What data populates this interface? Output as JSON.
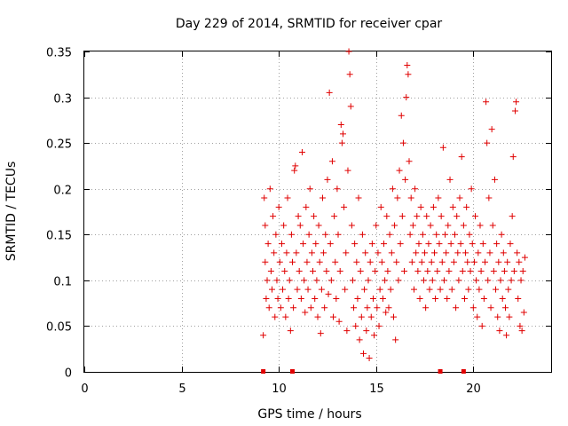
{
  "chart_data": {
    "type": "scatter",
    "title": "Day 229 of 2014, SRMTID for receiver cpar",
    "xlabel": "GPS time / hours",
    "ylabel": "SRMTID / TECUs",
    "xlim": [
      0,
      24
    ],
    "ylim": [
      0,
      0.35
    ],
    "x_ticks": [
      0,
      5,
      10,
      15,
      20
    ],
    "x_tick_labels": [
      "0",
      "5",
      "10",
      "15",
      "20"
    ],
    "y_ticks": [
      0,
      0.05,
      0.1,
      0.15,
      0.2,
      0.25,
      0.3,
      0.35
    ],
    "y_tick_labels": [
      "0",
      "0.05",
      "0.1",
      "0.15",
      "0.2",
      "0.25",
      "0.3",
      "0.35"
    ],
    "grid": true,
    "marker": "+",
    "color": "#e00000",
    "zero_markers_x": [
      9.2,
      10.7,
      18.3,
      19.5
    ],
    "points": [
      [
        9.2,
        0.04
      ],
      [
        9.25,
        0.19
      ],
      [
        9.3,
        0.12
      ],
      [
        9.3,
        0.16
      ],
      [
        9.35,
        0.08
      ],
      [
        9.4,
        0.1
      ],
      [
        9.45,
        0.14
      ],
      [
        9.5,
        0.07
      ],
      [
        9.55,
        0.2
      ],
      [
        9.6,
        0.11
      ],
      [
        9.65,
        0.09
      ],
      [
        9.7,
        0.17
      ],
      [
        9.75,
        0.13
      ],
      [
        9.8,
        0.06
      ],
      [
        9.85,
        0.15
      ],
      [
        9.9,
        0.1
      ],
      [
        9.95,
        0.08
      ],
      [
        10.0,
        0.18
      ],
      [
        10.05,
        0.12
      ],
      [
        10.1,
        0.07
      ],
      [
        10.15,
        0.14
      ],
      [
        10.2,
        0.09
      ],
      [
        10.25,
        0.16
      ],
      [
        10.3,
        0.11
      ],
      [
        10.35,
        0.06
      ],
      [
        10.4,
        0.13
      ],
      [
        10.45,
        0.19
      ],
      [
        10.5,
        0.08
      ],
      [
        10.55,
        0.1
      ],
      [
        10.6,
        0.045
      ],
      [
        10.65,
        0.15
      ],
      [
        10.7,
        0.12
      ],
      [
        10.75,
        0.07
      ],
      [
        10.8,
        0.22
      ],
      [
        10.85,
        0.225
      ],
      [
        10.9,
        0.13
      ],
      [
        10.95,
        0.09
      ],
      [
        11.0,
        0.17
      ],
      [
        11.05,
        0.11
      ],
      [
        11.1,
        0.16
      ],
      [
        11.15,
        0.08
      ],
      [
        11.2,
        0.24
      ],
      [
        11.25,
        0.14
      ],
      [
        11.3,
        0.1
      ],
      [
        11.35,
        0.065
      ],
      [
        11.4,
        0.18
      ],
      [
        11.45,
        0.12
      ],
      [
        11.5,
        0.09
      ],
      [
        11.55,
        0.15
      ],
      [
        11.6,
        0.2
      ],
      [
        11.65,
        0.07
      ],
      [
        11.7,
        0.13
      ],
      [
        11.75,
        0.11
      ],
      [
        11.8,
        0.17
      ],
      [
        11.85,
        0.08
      ],
      [
        11.9,
        0.14
      ],
      [
        11.95,
        0.1
      ],
      [
        12.0,
        0.06
      ],
      [
        12.05,
        0.16
      ],
      [
        12.1,
        0.12
      ],
      [
        12.15,
        0.042
      ],
      [
        12.2,
        0.09
      ],
      [
        12.25,
        0.19
      ],
      [
        12.3,
        0.13
      ],
      [
        12.35,
        0.07
      ],
      [
        12.4,
        0.15
      ],
      [
        12.45,
        0.11
      ],
      [
        12.5,
        0.21
      ],
      [
        12.55,
        0.085
      ],
      [
        12.6,
        0.305
      ],
      [
        12.65,
        0.14
      ],
      [
        12.7,
        0.1
      ],
      [
        12.75,
        0.23
      ],
      [
        12.8,
        0.06
      ],
      [
        12.85,
        0.17
      ],
      [
        12.9,
        0.12
      ],
      [
        12.95,
        0.08
      ],
      [
        13.0,
        0.2
      ],
      [
        13.05,
        0.15
      ],
      [
        13.1,
        0.055
      ],
      [
        13.15,
        0.11
      ],
      [
        13.2,
        0.27
      ],
      [
        13.25,
        0.25
      ],
      [
        13.3,
        0.26
      ],
      [
        13.35,
        0.18
      ],
      [
        13.4,
        0.09
      ],
      [
        13.45,
        0.13
      ],
      [
        13.5,
        0.045
      ],
      [
        13.55,
        0.22
      ],
      [
        13.6,
        0.35
      ],
      [
        13.65,
        0.325
      ],
      [
        13.7,
        0.29
      ],
      [
        13.75,
        0.16
      ],
      [
        13.8,
        0.1
      ],
      [
        13.85,
        0.07
      ],
      [
        13.9,
        0.14
      ],
      [
        13.95,
        0.05
      ],
      [
        14.0,
        0.12
      ],
      [
        14.05,
        0.08
      ],
      [
        14.1,
        0.19
      ],
      [
        14.15,
        0.035
      ],
      [
        14.2,
        0.11
      ],
      [
        14.25,
        0.06
      ],
      [
        14.3,
        0.15
      ],
      [
        14.35,
        0.02
      ],
      [
        14.4,
        0.09
      ],
      [
        14.45,
        0.13
      ],
      [
        14.5,
        0.045
      ],
      [
        14.55,
        0.07
      ],
      [
        14.6,
        0.1
      ],
      [
        14.65,
        0.015
      ],
      [
        14.7,
        0.12
      ],
      [
        14.75,
        0.06
      ],
      [
        14.8,
        0.14
      ],
      [
        14.85,
        0.08
      ],
      [
        14.9,
        0.04
      ],
      [
        14.95,
        0.11
      ],
      [
        15.0,
        0.16
      ],
      [
        15.05,
        0.07
      ],
      [
        15.1,
        0.13
      ],
      [
        15.15,
        0.05
      ],
      [
        15.2,
        0.09
      ],
      [
        15.25,
        0.18
      ],
      [
        15.3,
        0.12
      ],
      [
        15.35,
        0.08
      ],
      [
        15.4,
        0.14
      ],
      [
        15.45,
        0.1
      ],
      [
        15.5,
        0.065
      ],
      [
        15.55,
        0.17
      ],
      [
        15.6,
        0.11
      ],
      [
        15.65,
        0.07
      ],
      [
        15.7,
        0.15
      ],
      [
        15.75,
        0.09
      ],
      [
        15.8,
        0.13
      ],
      [
        15.85,
        0.2
      ],
      [
        15.9,
        0.06
      ],
      [
        15.95,
        0.16
      ],
      [
        16.0,
        0.035
      ],
      [
        16.05,
        0.12
      ],
      [
        16.1,
        0.19
      ],
      [
        16.15,
        0.1
      ],
      [
        16.2,
        0.22
      ],
      [
        16.25,
        0.14
      ],
      [
        16.3,
        0.28
      ],
      [
        16.35,
        0.17
      ],
      [
        16.4,
        0.25
      ],
      [
        16.45,
        0.11
      ],
      [
        16.5,
        0.21
      ],
      [
        16.55,
        0.3
      ],
      [
        16.6,
        0.335
      ],
      [
        16.65,
        0.325
      ],
      [
        16.7,
        0.23
      ],
      [
        16.75,
        0.15
      ],
      [
        16.8,
        0.19
      ],
      [
        16.85,
        0.12
      ],
      [
        16.9,
        0.16
      ],
      [
        16.95,
        0.09
      ],
      [
        17.0,
        0.2
      ],
      [
        17.05,
        0.13
      ],
      [
        17.1,
        0.17
      ],
      [
        17.15,
        0.11
      ],
      [
        17.2,
        0.14
      ],
      [
        17.25,
        0.08
      ],
      [
        17.3,
        0.18
      ],
      [
        17.35,
        0.12
      ],
      [
        17.4,
        0.15
      ],
      [
        17.45,
        0.1
      ],
      [
        17.5,
        0.13
      ],
      [
        17.55,
        0.07
      ],
      [
        17.6,
        0.17
      ],
      [
        17.65,
        0.11
      ],
      [
        17.7,
        0.14
      ],
      [
        17.75,
        0.09
      ],
      [
        17.8,
        0.16
      ],
      [
        17.85,
        0.12
      ],
      [
        17.9,
        0.1
      ],
      [
        17.95,
        0.18
      ],
      [
        18.0,
        0.13
      ],
      [
        18.05,
        0.08
      ],
      [
        18.1,
        0.15
      ],
      [
        18.15,
        0.11
      ],
      [
        18.2,
        0.19
      ],
      [
        18.25,
        0.14
      ],
      [
        18.3,
        0.09
      ],
      [
        18.35,
        0.17
      ],
      [
        18.4,
        0.12
      ],
      [
        18.45,
        0.245
      ],
      [
        18.5,
        0.1
      ],
      [
        18.55,
        0.15
      ],
      [
        18.6,
        0.13
      ],
      [
        18.65,
        0.08
      ],
      [
        18.7,
        0.16
      ],
      [
        18.75,
        0.11
      ],
      [
        18.8,
        0.21
      ],
      [
        18.85,
        0.14
      ],
      [
        18.9,
        0.09
      ],
      [
        18.95,
        0.18
      ],
      [
        19.0,
        0.12
      ],
      [
        19.05,
        0.15
      ],
      [
        19.1,
        0.07
      ],
      [
        19.15,
        0.17
      ],
      [
        19.2,
        0.13
      ],
      [
        19.25,
        0.1
      ],
      [
        19.3,
        0.19
      ],
      [
        19.35,
        0.14
      ],
      [
        19.4,
        0.235
      ],
      [
        19.45,
        0.11
      ],
      [
        19.5,
        0.16
      ],
      [
        19.55,
        0.08
      ],
      [
        19.6,
        0.13
      ],
      [
        19.65,
        0.18
      ],
      [
        19.7,
        0.12
      ],
      [
        19.75,
        0.09
      ],
      [
        19.8,
        0.15
      ],
      [
        19.85,
        0.11
      ],
      [
        19.9,
        0.2
      ],
      [
        19.95,
        0.14
      ],
      [
        20.0,
        0.07
      ],
      [
        20.05,
        0.12
      ],
      [
        20.1,
        0.17
      ],
      [
        20.15,
        0.1
      ],
      [
        20.2,
        0.06
      ],
      [
        20.25,
        0.13
      ],
      [
        20.3,
        0.09
      ],
      [
        20.35,
        0.16
      ],
      [
        20.4,
        0.11
      ],
      [
        20.45,
        0.05
      ],
      [
        20.5,
        0.14
      ],
      [
        20.55,
        0.08
      ],
      [
        20.6,
        0.12
      ],
      [
        20.65,
        0.295
      ],
      [
        20.7,
        0.25
      ],
      [
        20.75,
        0.1
      ],
      [
        20.8,
        0.19
      ],
      [
        20.85,
        0.13
      ],
      [
        20.9,
        0.07
      ],
      [
        20.95,
        0.265
      ],
      [
        21.0,
        0.16
      ],
      [
        21.05,
        0.11
      ],
      [
        21.1,
        0.21
      ],
      [
        21.15,
        0.09
      ],
      [
        21.2,
        0.14
      ],
      [
        21.25,
        0.06
      ],
      [
        21.3,
        0.12
      ],
      [
        21.35,
        0.045
      ],
      [
        21.4,
        0.1
      ],
      [
        21.45,
        0.15
      ],
      [
        21.5,
        0.08
      ],
      [
        21.55,
        0.13
      ],
      [
        21.6,
        0.11
      ],
      [
        21.65,
        0.07
      ],
      [
        21.7,
        0.04
      ],
      [
        21.75,
        0.12
      ],
      [
        21.8,
        0.09
      ],
      [
        21.85,
        0.06
      ],
      [
        21.9,
        0.14
      ],
      [
        21.95,
        0.1
      ],
      [
        22.0,
        0.17
      ],
      [
        22.05,
        0.235
      ],
      [
        22.1,
        0.11
      ],
      [
        22.15,
        0.285
      ],
      [
        22.2,
        0.295
      ],
      [
        22.25,
        0.13
      ],
      [
        22.3,
        0.08
      ],
      [
        22.35,
        0.12
      ],
      [
        22.4,
        0.05
      ],
      [
        22.45,
        0.1
      ],
      [
        22.5,
        0.045
      ],
      [
        22.55,
        0.11
      ],
      [
        22.6,
        0.065
      ],
      [
        22.65,
        0.125
      ]
    ]
  }
}
